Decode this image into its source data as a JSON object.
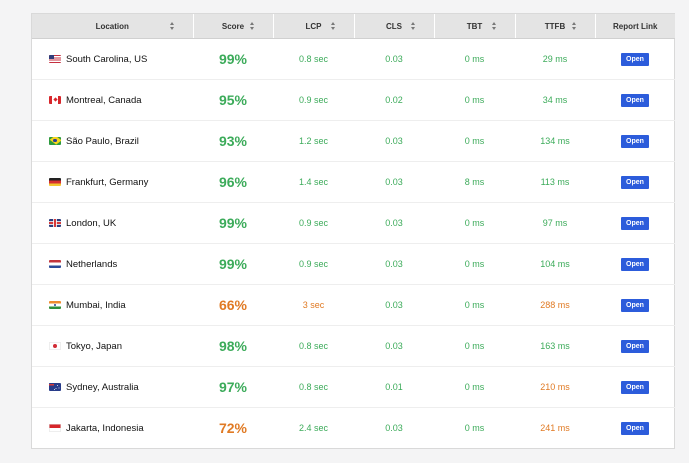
{
  "columns": [
    {
      "label": "Location"
    },
    {
      "label": "Score"
    },
    {
      "label": "LCP"
    },
    {
      "label": "CLS"
    },
    {
      "label": "TBT"
    },
    {
      "label": "TTFB"
    },
    {
      "label": "Report Link"
    }
  ],
  "colors": {
    "good": "#3cab5a",
    "warn": "#e07a24",
    "button": "#2c5cdb",
    "header_bg": "#e4e4e4"
  },
  "rows": [
    {
      "flag": "flag-us",
      "location": "South Carolina, US",
      "score": "99%",
      "score_status": "good",
      "lcp": "0.8 sec",
      "lcp_status": "good",
      "cls": "0.03",
      "tbt": "0 ms",
      "ttfb": "29 ms",
      "ttfb_status": "good",
      "link": "Open"
    },
    {
      "flag": "flag-ca",
      "location": "Montreal, Canada",
      "score": "95%",
      "score_status": "good",
      "lcp": "0.9 sec",
      "lcp_status": "good",
      "cls": "0.02",
      "tbt": "0 ms",
      "ttfb": "34 ms",
      "ttfb_status": "good",
      "link": "Open"
    },
    {
      "flag": "flag-br",
      "location": "São Paulo, Brazil",
      "score": "93%",
      "score_status": "good",
      "lcp": "1.2 sec",
      "lcp_status": "good",
      "cls": "0.03",
      "tbt": "0 ms",
      "ttfb": "134 ms",
      "ttfb_status": "good",
      "link": "Open"
    },
    {
      "flag": "flag-de",
      "location": "Frankfurt, Germany",
      "score": "96%",
      "score_status": "good",
      "lcp": "1.4 sec",
      "lcp_status": "good",
      "cls": "0.03",
      "tbt": "8 ms",
      "ttfb": "113 ms",
      "ttfb_status": "good",
      "link": "Open"
    },
    {
      "flag": "flag-gb",
      "location": "London, UK",
      "score": "99%",
      "score_status": "good",
      "lcp": "0.9 sec",
      "lcp_status": "good",
      "cls": "0.03",
      "tbt": "0 ms",
      "ttfb": "97 ms",
      "ttfb_status": "good",
      "link": "Open"
    },
    {
      "flag": "flag-nl",
      "location": "Netherlands",
      "score": "99%",
      "score_status": "good",
      "lcp": "0.9 sec",
      "lcp_status": "good",
      "cls": "0.03",
      "tbt": "0 ms",
      "ttfb": "104 ms",
      "ttfb_status": "good",
      "link": "Open"
    },
    {
      "flag": "flag-in",
      "location": "Mumbai, India",
      "score": "66%",
      "score_status": "warn",
      "lcp": "3 sec",
      "lcp_status": "warn",
      "cls": "0.03",
      "tbt": "0 ms",
      "ttfb": "288 ms",
      "ttfb_status": "warn",
      "link": "Open"
    },
    {
      "flag": "flag-jp",
      "location": "Tokyo, Japan",
      "score": "98%",
      "score_status": "good",
      "lcp": "0.8 sec",
      "lcp_status": "good",
      "cls": "0.03",
      "tbt": "0 ms",
      "ttfb": "163 ms",
      "ttfb_status": "good",
      "link": "Open"
    },
    {
      "flag": "flag-au",
      "location": "Sydney, Australia",
      "score": "97%",
      "score_status": "good",
      "lcp": "0.8 sec",
      "lcp_status": "good",
      "cls": "0.01",
      "tbt": "0 ms",
      "ttfb": "210 ms",
      "ttfb_status": "warn",
      "link": "Open"
    },
    {
      "flag": "flag-id",
      "location": "Jakarta, Indonesia",
      "score": "72%",
      "score_status": "warn",
      "lcp": "2.4 sec",
      "lcp_status": "good",
      "cls": "0.03",
      "tbt": "0 ms",
      "ttfb": "241 ms",
      "ttfb_status": "warn",
      "link": "Open"
    }
  ]
}
